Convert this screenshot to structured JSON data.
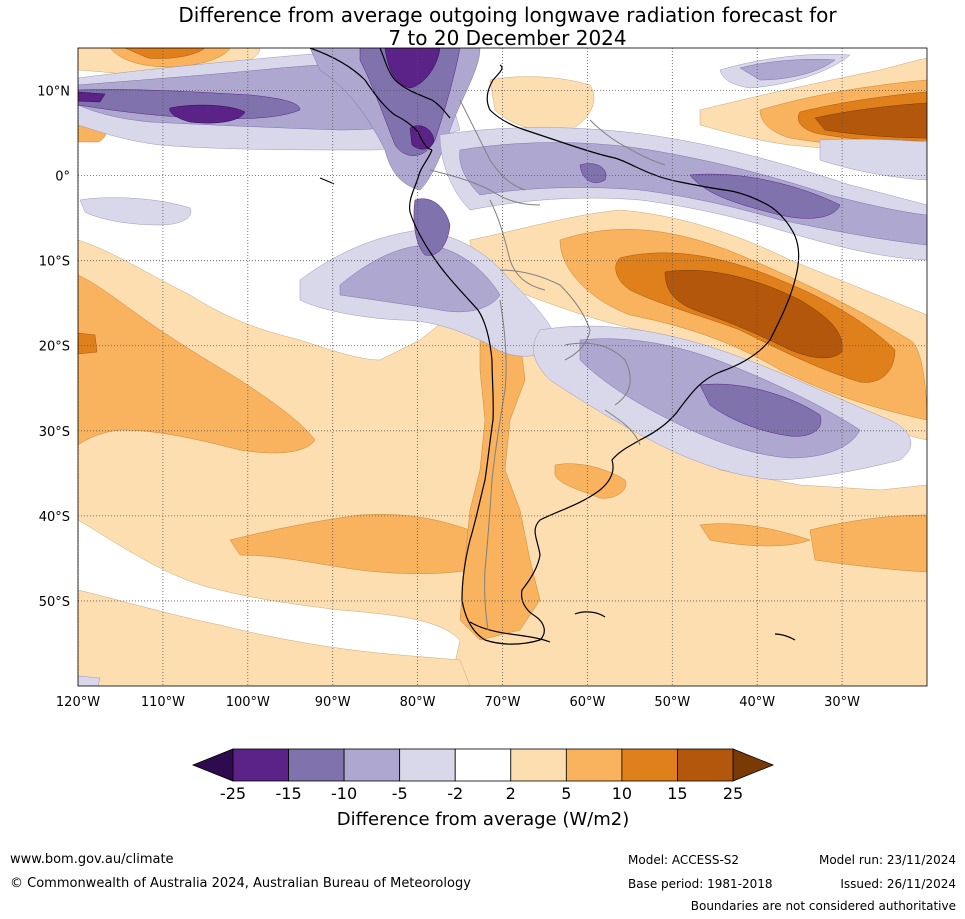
{
  "title": {
    "line1": "Difference from average outgoing longwave radiation forecast for",
    "line2": "7 to 20 December 2024"
  },
  "axes": {
    "lat_labels": [
      "10°N",
      "0°",
      "10°S",
      "20°S",
      "30°S",
      "40°S",
      "50°S"
    ],
    "lon_labels": [
      "120°W",
      "110°W",
      "100°W",
      "90°W",
      "80°W",
      "70°W",
      "60°W",
      "50°W",
      "40°W",
      "30°W"
    ],
    "lat_values": [
      10,
      0,
      -10,
      -20,
      -30,
      -40,
      -50
    ],
    "lon_values": [
      -120,
      -110,
      -100,
      -90,
      -80,
      -70,
      -60,
      -50,
      -40,
      -30
    ],
    "lon_range": [
      -120,
      -20
    ],
    "lat_range": [
      -60,
      15
    ]
  },
  "colorbar": {
    "title": "Difference from average (W/m2)",
    "labels": [
      "-25",
      "-15",
      "-10",
      "-5",
      "-2",
      "2",
      "5",
      "10",
      "15",
      "25"
    ],
    "colors": [
      "#5b2287",
      "#8072ad",
      "#aea7cf",
      "#d8d8ea",
      "#ffffff",
      "#fddeb0",
      "#f9b25d",
      "#e0801a",
      "#b3570c"
    ],
    "extend_low_color": "#2e0a4e",
    "extend_high_color": "#7a3a06"
  },
  "footer": {
    "website": "www.bom.gov.au/climate",
    "copyright": "© Commonwealth of Australia 2024, Australian Bureau of Meteorology",
    "model": "Model: ACCESS-S2",
    "base_period": "Base period: 1981-2018",
    "model_run": "Model run: 23/11/2024",
    "issued": "Issued: 26/11/2024",
    "disclaimer": "Boundaries are not considered authoritative"
  }
}
